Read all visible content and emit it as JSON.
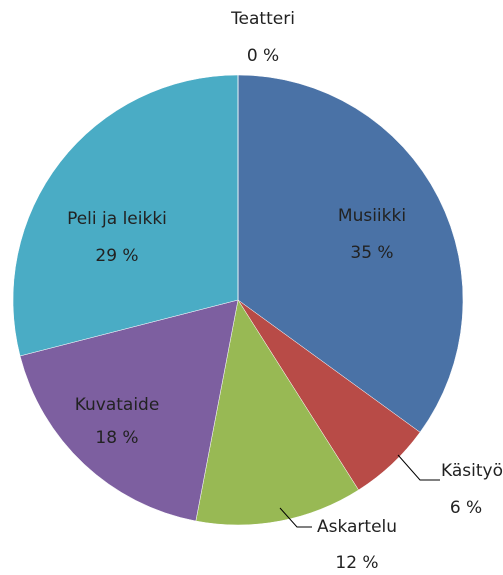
{
  "chart_data": {
    "type": "pie",
    "categories": [
      "Musiikki",
      "Käsityö",
      "Askartelu",
      "Kuvataide",
      "Peli ja leikki",
      "Teatteri"
    ],
    "values": [
      35,
      6,
      12,
      18,
      29,
      0
    ],
    "value_labels": [
      "35 %",
      "6 %",
      "12 %",
      "18 %",
      "29 %",
      "0 %"
    ],
    "colors": [
      "#4a72a6",
      "#b84b47",
      "#98b954",
      "#7d5fa0",
      "#4aacc5",
      "#f59d56"
    ]
  }
}
